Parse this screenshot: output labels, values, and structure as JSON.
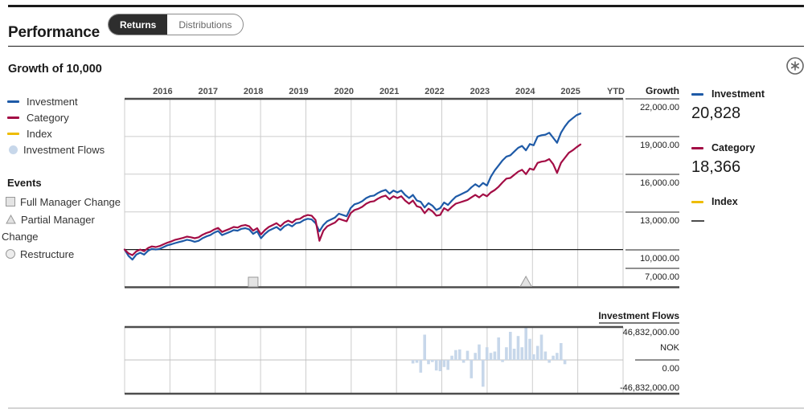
{
  "header": {
    "title": "Performance",
    "tabs": [
      {
        "label": "Returns",
        "selected": true
      },
      {
        "label": "Distributions",
        "selected": false
      }
    ]
  },
  "section": {
    "title": "Growth of 10,000",
    "annotation_icon": "circled-asterisk"
  },
  "legend": {
    "series": [
      {
        "label": "Investment",
        "color": "#1e5aa7",
        "swatch": "line"
      },
      {
        "label": "Category",
        "color": "#a30d45",
        "swatch": "line"
      },
      {
        "label": "Index",
        "color": "#eebc00",
        "swatch": "line"
      },
      {
        "label": "Investment Flows",
        "color": "#c7d7ea",
        "swatch": "dot"
      }
    ],
    "events_title": "Events",
    "events": [
      {
        "label": "Full Manager Change",
        "marker": "square"
      },
      {
        "label": "Partial Manager Change",
        "marker": "triangle"
      },
      {
        "label": "Restructure",
        "marker": "circle"
      }
    ]
  },
  "summary": [
    {
      "label": "Investment",
      "value": "20,828",
      "color": "#1e5aa7"
    },
    {
      "label": "Category",
      "value": "18,366",
      "color": "#a30d45"
    },
    {
      "label": "Index",
      "value": "—",
      "color": "#eebc00"
    }
  ],
  "chart_data": {
    "type": "line+bar",
    "x_labels": [
      "2016",
      "2017",
      "2018",
      "2019",
      "2020",
      "2021",
      "2022",
      "2023",
      "2024",
      "2025",
      "YTD"
    ],
    "growth_axis": {
      "title": "Growth",
      "tick_labels": [
        "22,000.00",
        "19,000.00",
        "16,000.00",
        "13,000.00",
        "10,000.00",
        "7,000.00"
      ],
      "tick_values": [
        22000,
        19000,
        16000,
        13000,
        10000,
        7000
      ],
      "range": [
        7000,
        22000
      ],
      "baseline_value": 10000
    },
    "start_month": "2016-01",
    "months_per_point": 1,
    "series": [
      {
        "name": "Investment",
        "color": "#1e5aa7",
        "final_value": 20828,
        "values": [
          10000,
          9500,
          9200,
          9600,
          9750,
          9600,
          9900,
          10050,
          10000,
          10050,
          10200,
          10340,
          10420,
          10520,
          10600,
          10680,
          10780,
          10720,
          10620,
          10700,
          10900,
          11050,
          11150,
          11350,
          11480,
          11150,
          11280,
          11400,
          11550,
          11500,
          11650,
          11700,
          11600,
          11250,
          11450,
          10900,
          11250,
          11500,
          11650,
          11800,
          11550,
          11850,
          12000,
          11850,
          12100,
          12150,
          12350,
          12450,
          12400,
          12100,
          11450,
          11950,
          12250,
          12400,
          12550,
          12850,
          12750,
          12650,
          13300,
          13600,
          13700,
          13850,
          14100,
          14250,
          14300,
          14500,
          14650,
          14750,
          14450,
          14700,
          14550,
          14700,
          14350,
          14100,
          14350,
          13900,
          13800,
          13350,
          13700,
          13500,
          13150,
          13300,
          13750,
          13550,
          13900,
          14200,
          14350,
          14500,
          14650,
          14950,
          15200,
          15000,
          15300,
          15100,
          15800,
          16300,
          16700,
          17100,
          17400,
          17500,
          17800,
          18100,
          18250,
          17900,
          18400,
          18300,
          19000,
          19100,
          19150,
          19300,
          18900,
          18500,
          19300,
          19800,
          20200,
          20450,
          20700,
          20828
        ]
      },
      {
        "name": "Category",
        "color": "#a30d45",
        "final_value": 18366,
        "values": [
          10000,
          9700,
          9550,
          9850,
          10000,
          9870,
          10120,
          10250,
          10200,
          10280,
          10420,
          10550,
          10650,
          10780,
          10850,
          10930,
          11030,
          10980,
          10900,
          10980,
          11180,
          11320,
          11420,
          11600,
          11720,
          11400,
          11530,
          11650,
          11800,
          11750,
          11900,
          11950,
          11850,
          11500,
          11700,
          11200,
          11550,
          11800,
          11950,
          12100,
          11850,
          12150,
          12300,
          12150,
          12400,
          12450,
          12650,
          12750,
          12700,
          12350,
          10700,
          11500,
          11850,
          12000,
          12150,
          12450,
          12350,
          12250,
          12900,
          13150,
          13250,
          13400,
          13650,
          13800,
          13850,
          14050,
          14200,
          14300,
          14000,
          14250,
          14100,
          14250,
          13900,
          13650,
          13900,
          13450,
          13350,
          12900,
          13250,
          13050,
          12700,
          12750,
          13300,
          13100,
          13400,
          13650,
          13750,
          13850,
          13950,
          14150,
          14350,
          14150,
          14400,
          14250,
          14550,
          14740,
          15000,
          15350,
          15650,
          15700,
          15950,
          16200,
          16350,
          16000,
          16450,
          16350,
          16900,
          17000,
          17050,
          17200,
          16800,
          16100,
          16900,
          17300,
          17700,
          17900,
          18150,
          18366
        ]
      },
      {
        "name": "Index",
        "color": "#eebc00",
        "final_value": null,
        "values": []
      }
    ],
    "events": [
      {
        "type": "full-manager-change",
        "marker": "square",
        "month_index": 33
      },
      {
        "type": "partial-manager-change",
        "marker": "triangle",
        "month_index": 103
      }
    ],
    "flows": {
      "title": "Investment Flows",
      "currency": "NOK",
      "axis_labels": [
        "46,832,000.00",
        "NOK",
        "0.00",
        "-46,832,000.00"
      ],
      "max_value": 46832000,
      "min_value": -46832000,
      "bar_color": "#c7d7ea",
      "start_month_index": 74,
      "values_millions_nok": [
        -5,
        -4,
        -18,
        36,
        -6,
        -3,
        -15,
        -16,
        -10,
        -14,
        6,
        14,
        15,
        -4,
        13,
        -26,
        10,
        22,
        -38,
        18,
        10,
        12,
        32,
        -3,
        18,
        40,
        16,
        34,
        18,
        46,
        30,
        8,
        20,
        36,
        12,
        -4,
        6,
        10,
        24,
        -6
      ]
    }
  }
}
